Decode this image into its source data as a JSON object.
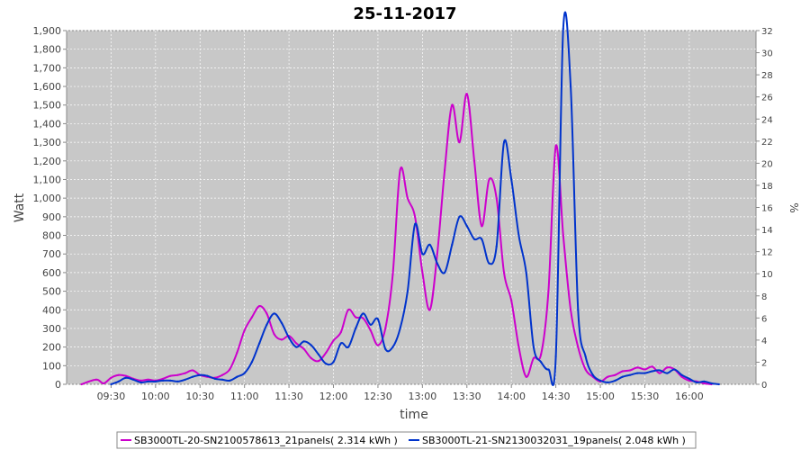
{
  "chart_data": {
    "type": "line",
    "title": "25-11-2017",
    "xlabel": "time",
    "ylabel": "Watt",
    "y2label": "%",
    "xlim": [
      "09:00",
      "16:45"
    ],
    "ylim": [
      0,
      1900
    ],
    "y2lim": [
      0,
      32
    ],
    "x_ticks": [
      "09:30",
      "10:00",
      "10:30",
      "11:00",
      "11:30",
      "12:00",
      "12:30",
      "13:00",
      "13:30",
      "14:00",
      "14:30",
      "15:00",
      "15:30",
      "16:00"
    ],
    "y_ticks": [
      "0",
      "100",
      "200",
      "300",
      "400",
      "500",
      "600",
      "700",
      "800",
      "900",
      "1,000",
      "1,100",
      "1,200",
      "1,300",
      "1,400",
      "1,500",
      "1,600",
      "1,700",
      "1,800",
      "1,900"
    ],
    "y2_ticks": [
      "0",
      "2",
      "4",
      "6",
      "8",
      "10",
      "12",
      "14",
      "16",
      "18",
      "20",
      "22",
      "24",
      "26",
      "28",
      "30",
      "32"
    ],
    "grid": true,
    "background": "#c8c8c8",
    "legend_position": "bottom",
    "series": [
      {
        "name": "SB3000TL-20-SN2100578613_21panels( 2.314 kWh )",
        "color": "#cc00cc",
        "points": [
          [
            "09:10",
            0
          ],
          [
            "09:20",
            25
          ],
          [
            "09:25",
            5
          ],
          [
            "09:30",
            35
          ],
          [
            "09:35",
            50
          ],
          [
            "09:40",
            45
          ],
          [
            "09:45",
            30
          ],
          [
            "09:50",
            20
          ],
          [
            "09:55",
            25
          ],
          [
            "10:00",
            20
          ],
          [
            "10:05",
            30
          ],
          [
            "10:10",
            45
          ],
          [
            "10:15",
            50
          ],
          [
            "10:20",
            60
          ],
          [
            "10:25",
            75
          ],
          [
            "10:30",
            50
          ],
          [
            "10:35",
            40
          ],
          [
            "10:40",
            35
          ],
          [
            "10:45",
            50
          ],
          [
            "10:50",
            80
          ],
          [
            "10:55",
            170
          ],
          [
            "11:00",
            290
          ],
          [
            "11:05",
            360
          ],
          [
            "11:10",
            420
          ],
          [
            "11:15",
            380
          ],
          [
            "11:20",
            270
          ],
          [
            "11:25",
            240
          ],
          [
            "11:30",
            260
          ],
          [
            "11:35",
            220
          ],
          [
            "11:40",
            190
          ],
          [
            "11:45",
            140
          ],
          [
            "11:50",
            125
          ],
          [
            "11:55",
            170
          ],
          [
            "12:00",
            235
          ],
          [
            "12:05",
            280
          ],
          [
            "12:10",
            400
          ],
          [
            "12:15",
            360
          ],
          [
            "12:20",
            355
          ],
          [
            "12:25",
            290
          ],
          [
            "12:30",
            210
          ],
          [
            "12:35",
            300
          ],
          [
            "12:40",
            590
          ],
          [
            "12:45",
            1150
          ],
          [
            "12:50",
            1000
          ],
          [
            "12:55",
            900
          ],
          [
            "13:00",
            600
          ],
          [
            "13:05",
            400
          ],
          [
            "13:10",
            700
          ],
          [
            "13:15",
            1150
          ],
          [
            "13:20",
            1500
          ],
          [
            "13:25",
            1300
          ],
          [
            "13:30",
            1560
          ],
          [
            "13:35",
            1200
          ],
          [
            "13:40",
            850
          ],
          [
            "13:45",
            1100
          ],
          [
            "13:50",
            1000
          ],
          [
            "13:55",
            600
          ],
          [
            "14:00",
            450
          ],
          [
            "14:05",
            200
          ],
          [
            "14:10",
            40
          ],
          [
            "14:15",
            140
          ],
          [
            "14:20",
            160
          ],
          [
            "14:25",
            500
          ],
          [
            "14:30",
            1280
          ],
          [
            "14:35",
            800
          ],
          [
            "14:40",
            400
          ],
          [
            "14:45",
            200
          ],
          [
            "14:50",
            80
          ],
          [
            "14:55",
            40
          ],
          [
            "15:00",
            15
          ],
          [
            "15:05",
            40
          ],
          [
            "15:10",
            50
          ],
          [
            "15:15",
            70
          ],
          [
            "15:20",
            75
          ],
          [
            "15:25",
            90
          ],
          [
            "15:30",
            80
          ],
          [
            "15:35",
            95
          ],
          [
            "15:40",
            60
          ],
          [
            "15:45",
            90
          ],
          [
            "15:50",
            80
          ],
          [
            "15:55",
            40
          ],
          [
            "16:00",
            20
          ],
          [
            "16:05",
            15
          ],
          [
            "16:10",
            5
          ],
          [
            "16:15",
            0
          ]
        ]
      },
      {
        "name": "SB3000TL-21-SN2130032031_19panels( 2.048 kWh )",
        "color": "#0033cc",
        "points": [
          [
            "09:30",
            0
          ],
          [
            "09:35",
            15
          ],
          [
            "09:40",
            35
          ],
          [
            "09:45",
            25
          ],
          [
            "09:50",
            10
          ],
          [
            "09:55",
            15
          ],
          [
            "10:00",
            15
          ],
          [
            "10:05",
            20
          ],
          [
            "10:10",
            20
          ],
          [
            "10:15",
            15
          ],
          [
            "10:20",
            25
          ],
          [
            "10:25",
            40
          ],
          [
            "10:30",
            50
          ],
          [
            "10:35",
            45
          ],
          [
            "10:40",
            30
          ],
          [
            "10:45",
            25
          ],
          [
            "10:50",
            20
          ],
          [
            "10:55",
            40
          ],
          [
            "11:00",
            60
          ],
          [
            "11:05",
            120
          ],
          [
            "11:10",
            220
          ],
          [
            "11:15",
            320
          ],
          [
            "11:20",
            380
          ],
          [
            "11:25",
            330
          ],
          [
            "11:30",
            250
          ],
          [
            "11:35",
            200
          ],
          [
            "11:40",
            230
          ],
          [
            "11:45",
            210
          ],
          [
            "11:50",
            160
          ],
          [
            "11:55",
            110
          ],
          [
            "12:00",
            120
          ],
          [
            "12:05",
            220
          ],
          [
            "12:10",
            200
          ],
          [
            "12:15",
            300
          ],
          [
            "12:20",
            380
          ],
          [
            "12:25",
            320
          ],
          [
            "12:30",
            350
          ],
          [
            "12:35",
            190
          ],
          [
            "12:40",
            200
          ],
          [
            "12:45",
            300
          ],
          [
            "12:50",
            500
          ],
          [
            "12:55",
            860
          ],
          [
            "13:00",
            700
          ],
          [
            "13:05",
            750
          ],
          [
            "13:10",
            650
          ],
          [
            "13:15",
            600
          ],
          [
            "13:20",
            750
          ],
          [
            "13:25",
            900
          ],
          [
            "13:30",
            850
          ],
          [
            "13:35",
            780
          ],
          [
            "13:40",
            780
          ],
          [
            "13:45",
            650
          ],
          [
            "13:50",
            740
          ],
          [
            "13:55",
            1300
          ],
          [
            "14:00",
            1100
          ],
          [
            "14:05",
            800
          ],
          [
            "14:10",
            600
          ],
          [
            "14:15",
            200
          ],
          [
            "14:20",
            120
          ],
          [
            "14:25",
            80
          ],
          [
            "14:30",
            150
          ],
          [
            "14:35",
            1940
          ],
          [
            "14:40",
            1600
          ],
          [
            "14:45",
            400
          ],
          [
            "14:50",
            150
          ],
          [
            "14:55",
            50
          ],
          [
            "15:00",
            20
          ],
          [
            "15:05",
            10
          ],
          [
            "15:10",
            20
          ],
          [
            "15:15",
            40
          ],
          [
            "15:20",
            50
          ],
          [
            "15:25",
            60
          ],
          [
            "15:30",
            60
          ],
          [
            "15:35",
            70
          ],
          [
            "15:40",
            75
          ],
          [
            "15:45",
            60
          ],
          [
            "15:50",
            80
          ],
          [
            "15:55",
            50
          ],
          [
            "16:00",
            30
          ],
          [
            "16:05",
            10
          ],
          [
            "16:10",
            15
          ],
          [
            "16:15",
            5
          ],
          [
            "16:20",
            0
          ]
        ]
      }
    ]
  }
}
